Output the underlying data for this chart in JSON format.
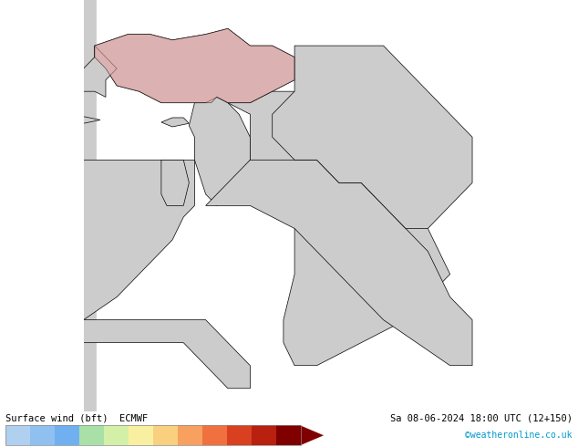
{
  "title_left": "Surface wind (bft)  ECMWF",
  "title_right": "Sa 08-06-2024 18:00 UTC (12+150)",
  "title_right2": "©weatheronline.co.uk",
  "colorbar_values": [
    1,
    2,
    3,
    4,
    5,
    6,
    7,
    8,
    9,
    10,
    11,
    12
  ],
  "colorbar_colors": [
    "#b0d0f0",
    "#90c0f0",
    "#70b0f0",
    "#a8e0a8",
    "#d4f0a8",
    "#f8f0a0",
    "#f8d080",
    "#f8a060",
    "#f07040",
    "#d84020",
    "#b82010",
    "#800000"
  ],
  "background_color": "#99ee99",
  "land_color": "#cccccc",
  "sea_color": "#99ee99",
  "border_color": "#000000",
  "fig_width": 6.34,
  "fig_height": 4.9,
  "dpi": 100,
  "bottom_bar_height": 0.08
}
